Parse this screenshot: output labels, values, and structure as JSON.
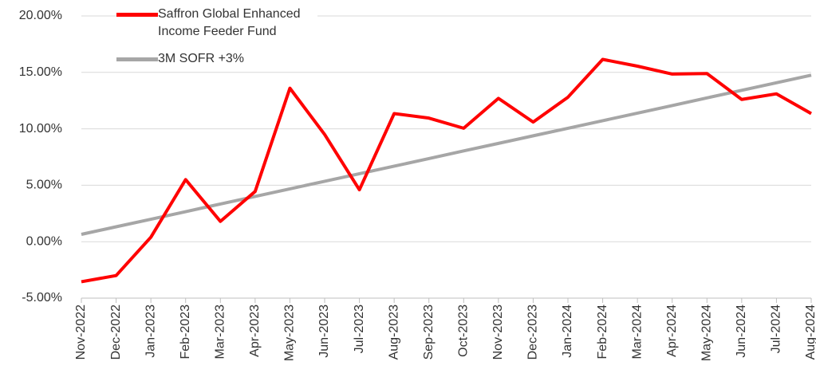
{
  "chart_data": {
    "type": "line",
    "categories": [
      "Nov-2022",
      "Dec-2022",
      "Jan-2023",
      "Feb-2023",
      "Mar-2023",
      "Apr-2023",
      "May-2023",
      "Jun-2023",
      "Jul-2023",
      "Aug-2023",
      "Sep-2023",
      "Oct-2023",
      "Nov-2023",
      "Dec-2023",
      "Jan-2024",
      "Feb-2024",
      "Mar-2024",
      "Apr-2024",
      "May-2024",
      "Jun-2024",
      "Jul-2024",
      "Aug-2024"
    ],
    "series": [
      {
        "name": "Saffron Global Enhanced Income Feeder Fund",
        "color": "#ff0000",
        "values": [
          -3.55,
          -3.0,
          0.4,
          5.5,
          1.8,
          4.45,
          13.6,
          9.5,
          4.6,
          11.35,
          10.95,
          10.05,
          12.7,
          10.6,
          12.8,
          16.15,
          15.55,
          14.85,
          14.9,
          12.6,
          13.1,
          11.35
        ]
      },
      {
        "name": "3M SOFR +3%",
        "color": "#a6a6a6",
        "values": [
          0.65,
          1.32,
          1.99,
          2.66,
          3.34,
          4.01,
          4.68,
          5.35,
          6.02,
          6.69,
          7.36,
          8.04,
          8.71,
          9.38,
          10.05,
          10.72,
          11.39,
          12.06,
          12.74,
          13.41,
          14.08,
          14.75
        ]
      }
    ],
    "ylim": [
      -5,
      20
    ],
    "yticks": [
      {
        "value": -5,
        "label": "-5.00%"
      },
      {
        "value": 0,
        "label": "0.00%"
      },
      {
        "value": 5,
        "label": "5.00%"
      },
      {
        "value": 10,
        "label": "10.00%"
      },
      {
        "value": 15,
        "label": "15.00%"
      },
      {
        "value": 20,
        "label": "20.00%"
      }
    ],
    "grid": true,
    "legend": "top-left"
  }
}
